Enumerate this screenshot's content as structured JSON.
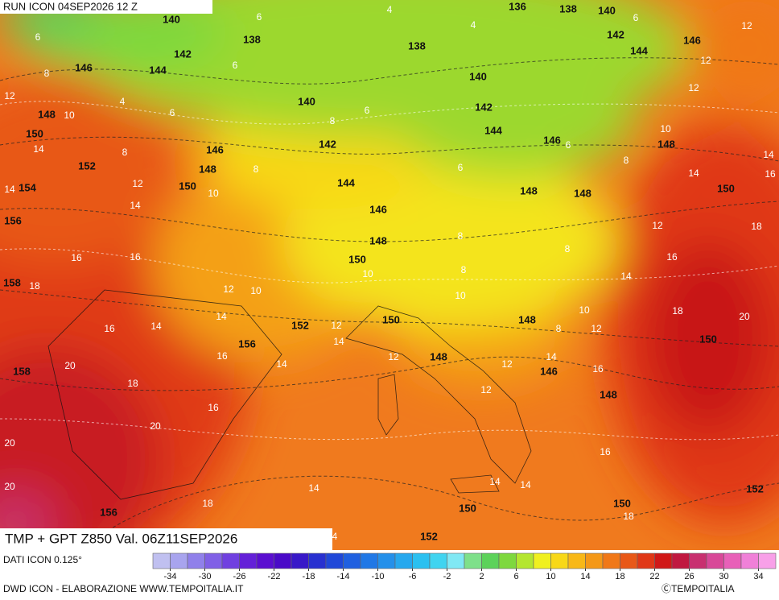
{
  "header": {
    "run": "RUN ICON 04SEP2026 12 Z"
  },
  "footer": {
    "title": "TMP + GPT Z850 Val. 06Z11SEP2026",
    "source": "DATI ICON 0.125°",
    "credit": "DWD ICON - ELABORAZIONE WWW.TEMPOITALIA.IT",
    "logo": "ⒸTEMPOITALIA"
  },
  "legend": {
    "ticks": [
      -34,
      -30,
      -26,
      -22,
      -18,
      -14,
      -10,
      -6,
      -2,
      2,
      6,
      10,
      14,
      18,
      22,
      26,
      30,
      34
    ],
    "colors": [
      "#c0c0f0",
      "#a8a4ee",
      "#9080ea",
      "#8060e6",
      "#7040e0",
      "#6420d8",
      "#5a0ed0",
      "#4a0ac8",
      "#3818c8",
      "#2830d0",
      "#2048d8",
      "#2060e0",
      "#2078e6",
      "#2490ea",
      "#26a8ee",
      "#2ac0f0",
      "#40d4f0",
      "#80e8f4",
      "#7ee08a",
      "#5cd25a",
      "#7ed83e",
      "#b4e630",
      "#f0f020",
      "#f8d818",
      "#f8b818",
      "#f49818",
      "#f07818",
      "#e85818",
      "#e03818",
      "#d01818",
      "#c01840",
      "#c83070",
      "#d84898",
      "#e860b8",
      "#f080d8",
      "#f8a0e8"
    ]
  },
  "map": {
    "geopotential_labels": [
      140,
      138,
      142,
      146,
      144,
      148,
      150,
      140,
      142,
      146,
      148,
      152,
      154,
      150,
      144,
      146,
      156,
      148,
      150,
      158,
      152,
      150,
      156,
      158,
      148,
      148,
      146,
      148,
      150,
      150,
      148,
      146,
      144,
      142,
      140,
      138,
      136,
      138,
      140,
      142,
      144,
      146,
      148,
      148,
      156,
      150,
      150,
      152,
      152
    ],
    "temperature_labels": [
      4,
      6,
      4,
      6,
      12,
      6,
      6,
      12,
      8,
      12,
      4,
      6,
      6,
      12,
      10,
      8,
      10,
      14,
      8,
      6,
      6,
      8,
      8,
      12,
      14,
      14,
      16,
      10,
      14,
      14,
      12,
      18,
      8,
      8,
      16,
      16,
      16,
      10,
      8,
      18,
      12,
      10,
      14,
      10,
      16,
      14,
      14,
      12,
      14,
      10,
      18,
      20,
      8,
      12,
      16,
      14,
      12,
      14,
      12,
      20,
      18,
      16,
      12,
      16,
      20,
      20,
      16,
      20,
      14,
      14,
      14,
      18,
      18,
      4
    ]
  }
}
